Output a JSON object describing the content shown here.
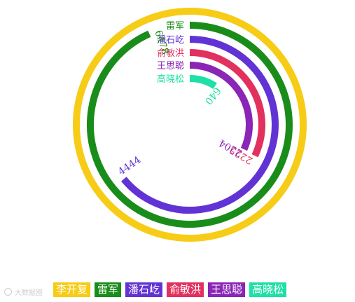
{
  "chart_data": {
    "type": "radial-bar",
    "title": "",
    "full_circle_value": 6940,
    "series": [
      {
        "name": "李开复",
        "value": 6940,
        "color": "#f7cc16",
        "value_label": ""
      },
      {
        "name": "雷军",
        "value": 6478,
        "color": "#1a8c1a",
        "value_label": "6478"
      },
      {
        "name": "潘石屹",
        "value": 4444,
        "color": "#6233d4",
        "value_label": "4444"
      },
      {
        "name": "俞敏洪",
        "value": 2225,
        "color": "#e2315f",
        "value_label": "2225"
      },
      {
        "name": "王思聪",
        "value": 2204,
        "color": "#8a25b6",
        "value_label": "2204"
      },
      {
        "name": "高晓松",
        "value": 640,
        "color": "#1fe0a6",
        "value_label": "640"
      }
    ],
    "legend_position": "bottom"
  },
  "watermark": {
    "text": "大数据图"
  }
}
